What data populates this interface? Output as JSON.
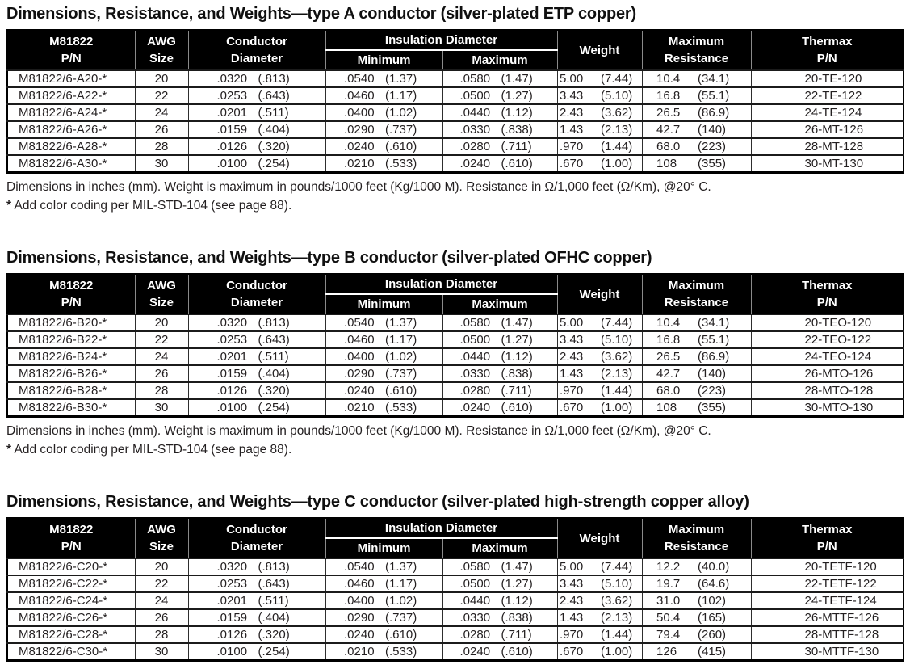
{
  "columns": {
    "pn_line1": "M81822",
    "pn_line2": "P/N",
    "awg_line1": "AWG",
    "awg_line2": "Size",
    "cond_line1": "Conductor",
    "cond_line2": "Diameter",
    "insulation": "Insulation Diameter",
    "ins_min": "Minimum",
    "ins_max": "Maximum",
    "weight": "Weight",
    "res_line1": "Maximum",
    "res_line2": "Resistance",
    "thermax_line1": "Thermax",
    "thermax_line2": "P/N"
  },
  "footnotes": {
    "dimensions": "Dimensions in inches (mm).  Weight is maximum in pounds/1000 feet (Kg/1000 M).  Resistance in Ω/1,000 feet (Ω/Km), @20° C.",
    "star": "*",
    "color_coding": "Add color coding per MIL-STD-104 (see page 88)."
  },
  "colors": {
    "header_bg": "#000000",
    "header_text": "#ffffff",
    "body_text": "#231f20",
    "header_divider": "#8a8a8a"
  },
  "tables": [
    {
      "title": "Dimensions, Resistance, and Weights—type A conductor (silver-plated ETP copper)",
      "rows": [
        {
          "pn": "M81822/6-A20-*",
          "awg": "20",
          "cond_in": ".0320",
          "cond_mm": "(.813)",
          "insmin_in": ".0540",
          "insmin_mm": "(1.37)",
          "insmax_in": ".0580",
          "insmax_mm": "(1.47)",
          "wt_lb": "5.00",
          "wt_kg": "(7.44)",
          "res_ft": "10.4",
          "res_km": "(34.1)",
          "thermax": "20-TE-120"
        },
        {
          "pn": "M81822/6-A22-*",
          "awg": "22",
          "cond_in": ".0253",
          "cond_mm": "(.643)",
          "insmin_in": ".0460",
          "insmin_mm": "(1.17)",
          "insmax_in": ".0500",
          "insmax_mm": "(1.27)",
          "wt_lb": "3.43",
          "wt_kg": "(5.10)",
          "res_ft": "16.8",
          "res_km": "(55.1)",
          "thermax": "22-TE-122"
        },
        {
          "pn": "M81822/6-A24-*",
          "awg": "24",
          "cond_in": ".0201",
          "cond_mm": "(.511)",
          "insmin_in": ".0400",
          "insmin_mm": "(1.02)",
          "insmax_in": ".0440",
          "insmax_mm": "(1.12)",
          "wt_lb": "2.43",
          "wt_kg": "(3.62)",
          "res_ft": "26.5",
          "res_km": "(86.9)",
          "thermax": "24-TE-124"
        },
        {
          "pn": "M81822/6-A26-*",
          "awg": "26",
          "cond_in": ".0159",
          "cond_mm": "(.404)",
          "insmin_in": ".0290",
          "insmin_mm": "(.737)",
          "insmax_in": ".0330",
          "insmax_mm": "(.838)",
          "wt_lb": "1.43",
          "wt_kg": "(2.13)",
          "res_ft": "42.7",
          "res_km": "(140)",
          "thermax": "26-MT-126"
        },
        {
          "pn": "M81822/6-A28-*",
          "awg": "28",
          "cond_in": ".0126",
          "cond_mm": "(.320)",
          "insmin_in": ".0240",
          "insmin_mm": "(.610)",
          "insmax_in": ".0280",
          "insmax_mm": "(.711)",
          "wt_lb": ".970",
          "wt_kg": "(1.44)",
          "res_ft": "68.0",
          "res_km": "(223)",
          "thermax": "28-MT-128"
        },
        {
          "pn": "M81822/6-A30-*",
          "awg": "30",
          "cond_in": ".0100",
          "cond_mm": "(.254)",
          "insmin_in": ".0210",
          "insmin_mm": "(.533)",
          "insmax_in": ".0240",
          "insmax_mm": "(.610)",
          "wt_lb": ".670",
          "wt_kg": "(1.00)",
          "res_ft": "108",
          "res_km": "(355)",
          "thermax": "30-MT-130"
        }
      ],
      "has_footnotes": true
    },
    {
      "title": "Dimensions, Resistance, and Weights—type B conductor (silver-plated OFHC copper)",
      "rows": [
        {
          "pn": "M81822/6-B20-*",
          "awg": "20",
          "cond_in": ".0320",
          "cond_mm": "(.813)",
          "insmin_in": ".0540",
          "insmin_mm": "(1.37)",
          "insmax_in": ".0580",
          "insmax_mm": "(1.47)",
          "wt_lb": "5.00",
          "wt_kg": "(7.44)",
          "res_ft": "10.4",
          "res_km": "(34.1)",
          "thermax": "20-TEO-120"
        },
        {
          "pn": "M81822/6-B22-*",
          "awg": "22",
          "cond_in": ".0253",
          "cond_mm": "(.643)",
          "insmin_in": ".0460",
          "insmin_mm": "(1.17)",
          "insmax_in": ".0500",
          "insmax_mm": "(1.27)",
          "wt_lb": "3.43",
          "wt_kg": "(5.10)",
          "res_ft": "16.8",
          "res_km": "(55.1)",
          "thermax": "22-TEO-122"
        },
        {
          "pn": "M81822/6-B24-*",
          "awg": "24",
          "cond_in": ".0201",
          "cond_mm": "(.511)",
          "insmin_in": ".0400",
          "insmin_mm": "(1.02)",
          "insmax_in": ".0440",
          "insmax_mm": "(1.12)",
          "wt_lb": "2.43",
          "wt_kg": "(3.62)",
          "res_ft": "26.5",
          "res_km": "(86.9)",
          "thermax": "24-TEO-124"
        },
        {
          "pn": "M81822/6-B26-*",
          "awg": "26",
          "cond_in": ".0159",
          "cond_mm": "(.404)",
          "insmin_in": ".0290",
          "insmin_mm": "(.737)",
          "insmax_in": ".0330",
          "insmax_mm": "(.838)",
          "wt_lb": "1.43",
          "wt_kg": "(2.13)",
          "res_ft": "42.7",
          "res_km": "(140)",
          "thermax": "26-MTO-126"
        },
        {
          "pn": "M81822/6-B28-*",
          "awg": "28",
          "cond_in": ".0126",
          "cond_mm": "(.320)",
          "insmin_in": ".0240",
          "insmin_mm": "(.610)",
          "insmax_in": ".0280",
          "insmax_mm": "(.711)",
          "wt_lb": ".970",
          "wt_kg": "(1.44)",
          "res_ft": "68.0",
          "res_km": "(223)",
          "thermax": "28-MTO-128"
        },
        {
          "pn": "M81822/6-B30-*",
          "awg": "30",
          "cond_in": ".0100",
          "cond_mm": "(.254)",
          "insmin_in": ".0210",
          "insmin_mm": "(.533)",
          "insmax_in": ".0240",
          "insmax_mm": "(.610)",
          "wt_lb": ".670",
          "wt_kg": "(1.00)",
          "res_ft": "108",
          "res_km": "(355)",
          "thermax": "30-MTO-130"
        }
      ],
      "has_footnotes": true
    },
    {
      "title": "Dimensions, Resistance, and Weights—type C conductor (silver-plated high-strength copper alloy)",
      "rows": [
        {
          "pn": "M81822/6-C20-*",
          "awg": "20",
          "cond_in": ".0320",
          "cond_mm": "(.813)",
          "insmin_in": ".0540",
          "insmin_mm": "(1.37)",
          "insmax_in": ".0580",
          "insmax_mm": "(1.47)",
          "wt_lb": "5.00",
          "wt_kg": "(7.44)",
          "res_ft": "12.2",
          "res_km": "(40.0)",
          "thermax": "20-TETF-120"
        },
        {
          "pn": "M81822/6-C22-*",
          "awg": "22",
          "cond_in": ".0253",
          "cond_mm": "(.643)",
          "insmin_in": ".0460",
          "insmin_mm": "(1.17)",
          "insmax_in": ".0500",
          "insmax_mm": "(1.27)",
          "wt_lb": "3.43",
          "wt_kg": "(5.10)",
          "res_ft": "19.7",
          "res_km": "(64.6)",
          "thermax": "22-TETF-122"
        },
        {
          "pn": "M81822/6-C24-*",
          "awg": "24",
          "cond_in": ".0201",
          "cond_mm": "(.511)",
          "insmin_in": ".0400",
          "insmin_mm": "(1.02)",
          "insmax_in": ".0440",
          "insmax_mm": "(1.12)",
          "wt_lb": "2.43",
          "wt_kg": "(3.62)",
          "res_ft": "31.0",
          "res_km": "(102)",
          "thermax": "24-TETF-124"
        },
        {
          "pn": "M81822/6-C26-*",
          "awg": "26",
          "cond_in": ".0159",
          "cond_mm": "(.404)",
          "insmin_in": ".0290",
          "insmin_mm": "(.737)",
          "insmax_in": ".0330",
          "insmax_mm": "(.838)",
          "wt_lb": "1.43",
          "wt_kg": "(2.13)",
          "res_ft": "50.4",
          "res_km": "(165)",
          "thermax": "26-MTTF-126"
        },
        {
          "pn": "M81822/6-C28-*",
          "awg": "28",
          "cond_in": ".0126",
          "cond_mm": "(.320)",
          "insmin_in": ".0240",
          "insmin_mm": "(.610)",
          "insmax_in": ".0280",
          "insmax_mm": "(.711)",
          "wt_lb": ".970",
          "wt_kg": "(1.44)",
          "res_ft": "79.4",
          "res_km": "(260)",
          "thermax": "28-MTTF-128"
        },
        {
          "pn": "M81822/6-C30-*",
          "awg": "30",
          "cond_in": ".0100",
          "cond_mm": "(.254)",
          "insmin_in": ".0210",
          "insmin_mm": "(.533)",
          "insmax_in": ".0240",
          "insmax_mm": "(.610)",
          "wt_lb": ".670",
          "wt_kg": "(1.00)",
          "res_ft": "126",
          "res_km": "(415)",
          "thermax": "30-MTTF-130"
        }
      ],
      "has_footnotes": false
    }
  ]
}
